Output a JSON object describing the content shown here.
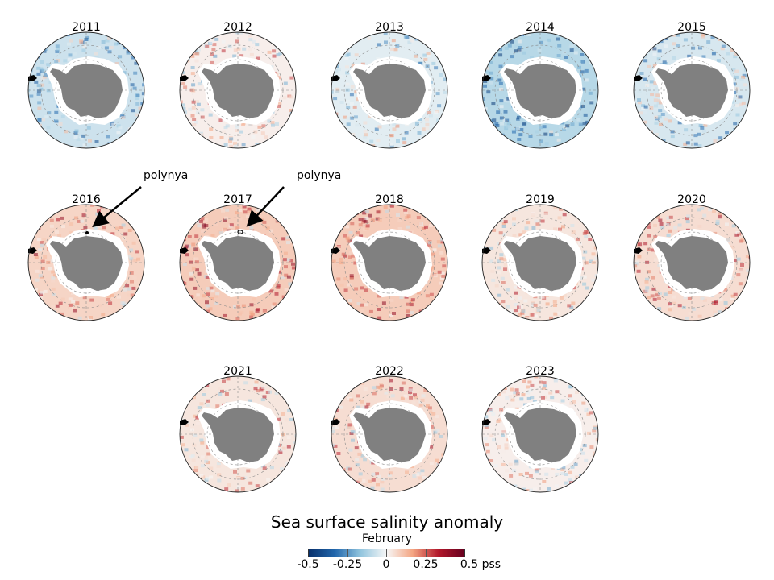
{
  "panels": [
    {
      "year": "2011"
    },
    {
      "year": "2012"
    },
    {
      "year": "2013"
    },
    {
      "year": "2014"
    },
    {
      "year": "2015"
    },
    {
      "year": "2016"
    },
    {
      "year": "2017"
    },
    {
      "year": "2018"
    },
    {
      "year": "2019"
    },
    {
      "year": "2020"
    },
    {
      "year": "2021"
    },
    {
      "year": "2022"
    },
    {
      "year": "2023"
    }
  ],
  "annotations": [
    {
      "label": "polynya",
      "year": "2016"
    },
    {
      "label": "polynya",
      "year": "2017"
    }
  ],
  "colorbar": {
    "title": "Sea surface salinity anomaly",
    "subtitle": "February",
    "ticks": [
      "-0.5",
      "-0.25",
      "0",
      "0.25",
      "0.5 pss"
    ],
    "range": [
      -0.5,
      0.5
    ],
    "colormap": [
      "#08306b",
      "#2166ac",
      "#92c5de",
      "#f7f7f7",
      "#f4a582",
      "#b2182b",
      "#67001f"
    ]
  },
  "colors": {
    "land": "#808080",
    "sea_ice": "#ffffff",
    "graticule": "#888888"
  }
}
